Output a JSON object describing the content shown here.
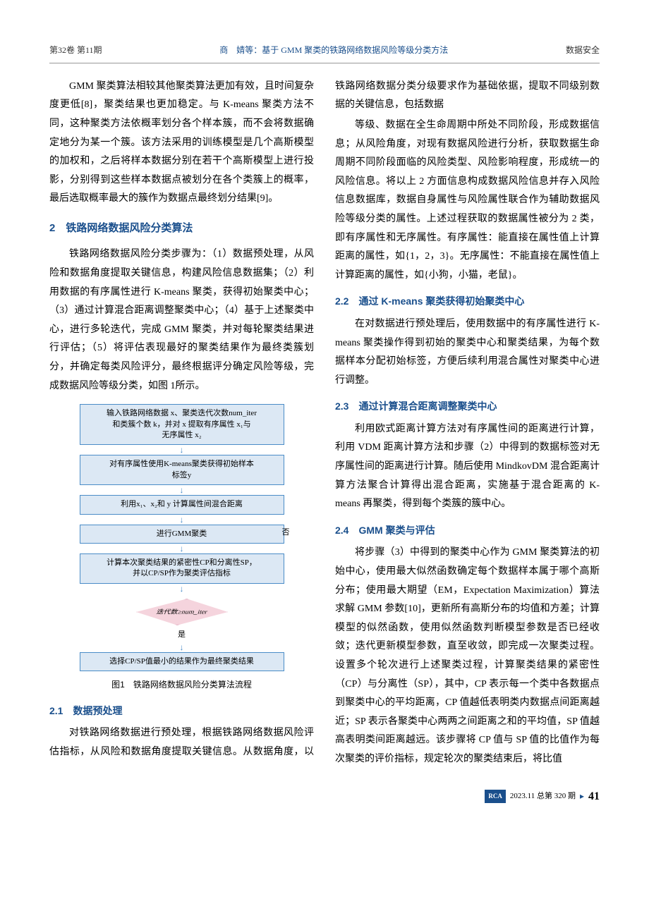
{
  "header": {
    "left": "第32卷 第11期",
    "center": "商　婧等：基于 GMM 聚类的铁路网络数据风险等级分类方法",
    "right": "数据安全"
  },
  "col1": {
    "p1": "GMM 聚类算法相较其他聚类算法更加有效，且时间复杂度更低[8]，聚类结果也更加稳定。与 K-means 聚类方法不同，这种聚类方法依概率划分各个样本簇，而不会将数据确定地分为某一个簇。该方法采用的训练模型是几个高斯模型的加权和，之后将样本数据分别在若干个高斯模型上进行投影，分别得到这些样本数据点被划分在各个类簇上的概率，最后选取概率最大的簇作为数据点最终划分结果[9]。",
    "sec2_title": "2　铁路网络数据风险分类算法",
    "p2": "铁路网络数据风险分类步骤为：（1）数据预处理，从风险和数据角度提取关键信息，构建风险信息数据集；（2）利用数据的有序属性进行 K-means 聚类，获得初始聚类中心；（3）通过计算混合距离调整聚类中心；（4）基于上述聚类中心，进行多轮迭代，完成 GMM 聚类，并对每轮聚类结果进行评估；（5）将评估表现最好的聚类结果作为最终类簇划分，并确定每类风险评分，最终根据评分确定风险等级，完成数据风险等级分类，如图 1所示。",
    "fig_caption": "图1　铁路网络数据风险分类算法流程",
    "sub21_title": "2.1　数据预处理",
    "p3": "对铁路网络数据进行预处理，根据铁路网络数据风险评估指标，从风险和数据角度提取关键信息。从数据角度，以铁路网络数据分类分级要求作为基础依据，提取不同级别数据的关键信息，包括数据"
  },
  "col2": {
    "p1": "等级、数据在全生命周期中所处不同阶段，形成数据信息；从风险角度，对现有数据风险进行分析，获取数据生命周期不同阶段面临的风险类型、风险影响程度，形成统一的风险信息。将以上 2 方面信息构成数据风险信息并存入风险信息数据库，数据自身属性与风险属性联合作为辅助数据风险等级分类的属性。上述过程获取的数据属性被分为 2 类，即有序属性和无序属性。有序属性：能直接在属性值上计算距离的属性，如{1，2，3}。无序属性：不能直接在属性值上计算距离的属性，如{小狗，小猫，老鼠}。",
    "sub22_title": "2.2　通过 K-means 聚类获得初始聚类中心",
    "p2": "在对数据进行预处理后，使用数据中的有序属性进行 K-means 聚类操作得到初始的聚类中心和聚类结果，为每个数据样本分配初始标签，方便后续利用混合属性对聚类中心进行调整。",
    "sub23_title": "2.3　通过计算混合距离调整聚类中心",
    "p3": "利用欧式距离计算方法对有序属性间的距离进行计算，利用 VDM 距离计算方法和步骤（2）中得到的数据标签对无序属性间的距离进行计算。随后使用 MindkovDM 混合距离计算方法聚合计算得出混合距离，实施基于混合距离的 K-means 再聚类，得到每个类簇的簇中心。",
    "sub24_title": "2.4　GMM 聚类与评估",
    "p4": "将步骤（3）中得到的聚类中心作为 GMM 聚类算法的初始中心，使用最大似然函数确定每个数据样本属于哪个高斯分布；使用最大期望（EM，Expectation Maximization）算法求解 GMM 参数[10]，更新所有高斯分布的均值和方差；计算模型的似然函数，使用似然函数判断模型参数是否已经收敛；迭代更新模型参数，直至收敛，即完成一次聚类过程。设置多个轮次进行上述聚类过程，计算聚类结果的紧密性（CP）与分离性（SP），其中，CP 表示每一个类中各数据点到聚类中心的平均距离，CP 值越低表明类内数据点间距离越近；SP 表示各聚类中心两两之间距离之和的平均值，SP 值越高表明类间距离越远。该步骤将 CP 值与 SP 值的比值作为每次聚类的评价指标，规定轮次的聚类结束后，将比值"
  },
  "flowchart": {
    "box1": "输入铁路网络数据 x、聚类迭代次数num_iter\n和类簇个数 k，并对 x 提取有序属性 x₁与\n无序属性 x₂",
    "box2": "对有序属性使用K-means聚类获得初始样本\n标签y",
    "box3": "利用x₁、x₂和 y 计算属性间混合距离",
    "box4": "进行GMM聚类",
    "box5": "计算本次聚类结果的紧密性CP和分离性SP，\n并以CP/SP作为聚类评估指标",
    "diamond": "迭代数≥num_iter",
    "no_label": "否",
    "yes_label": "是",
    "box6": "选择CP/SP值最小的结果作为最终聚类结果",
    "colors": {
      "box_bg": "#dce8f4",
      "box_border": "#4a8cc7",
      "diamond_bg": "#f5d4dd",
      "diamond_border": "#d48ba8"
    }
  },
  "footer": {
    "badge": "RCA",
    "text": "2023.11 总第 320 期",
    "page": "41"
  }
}
